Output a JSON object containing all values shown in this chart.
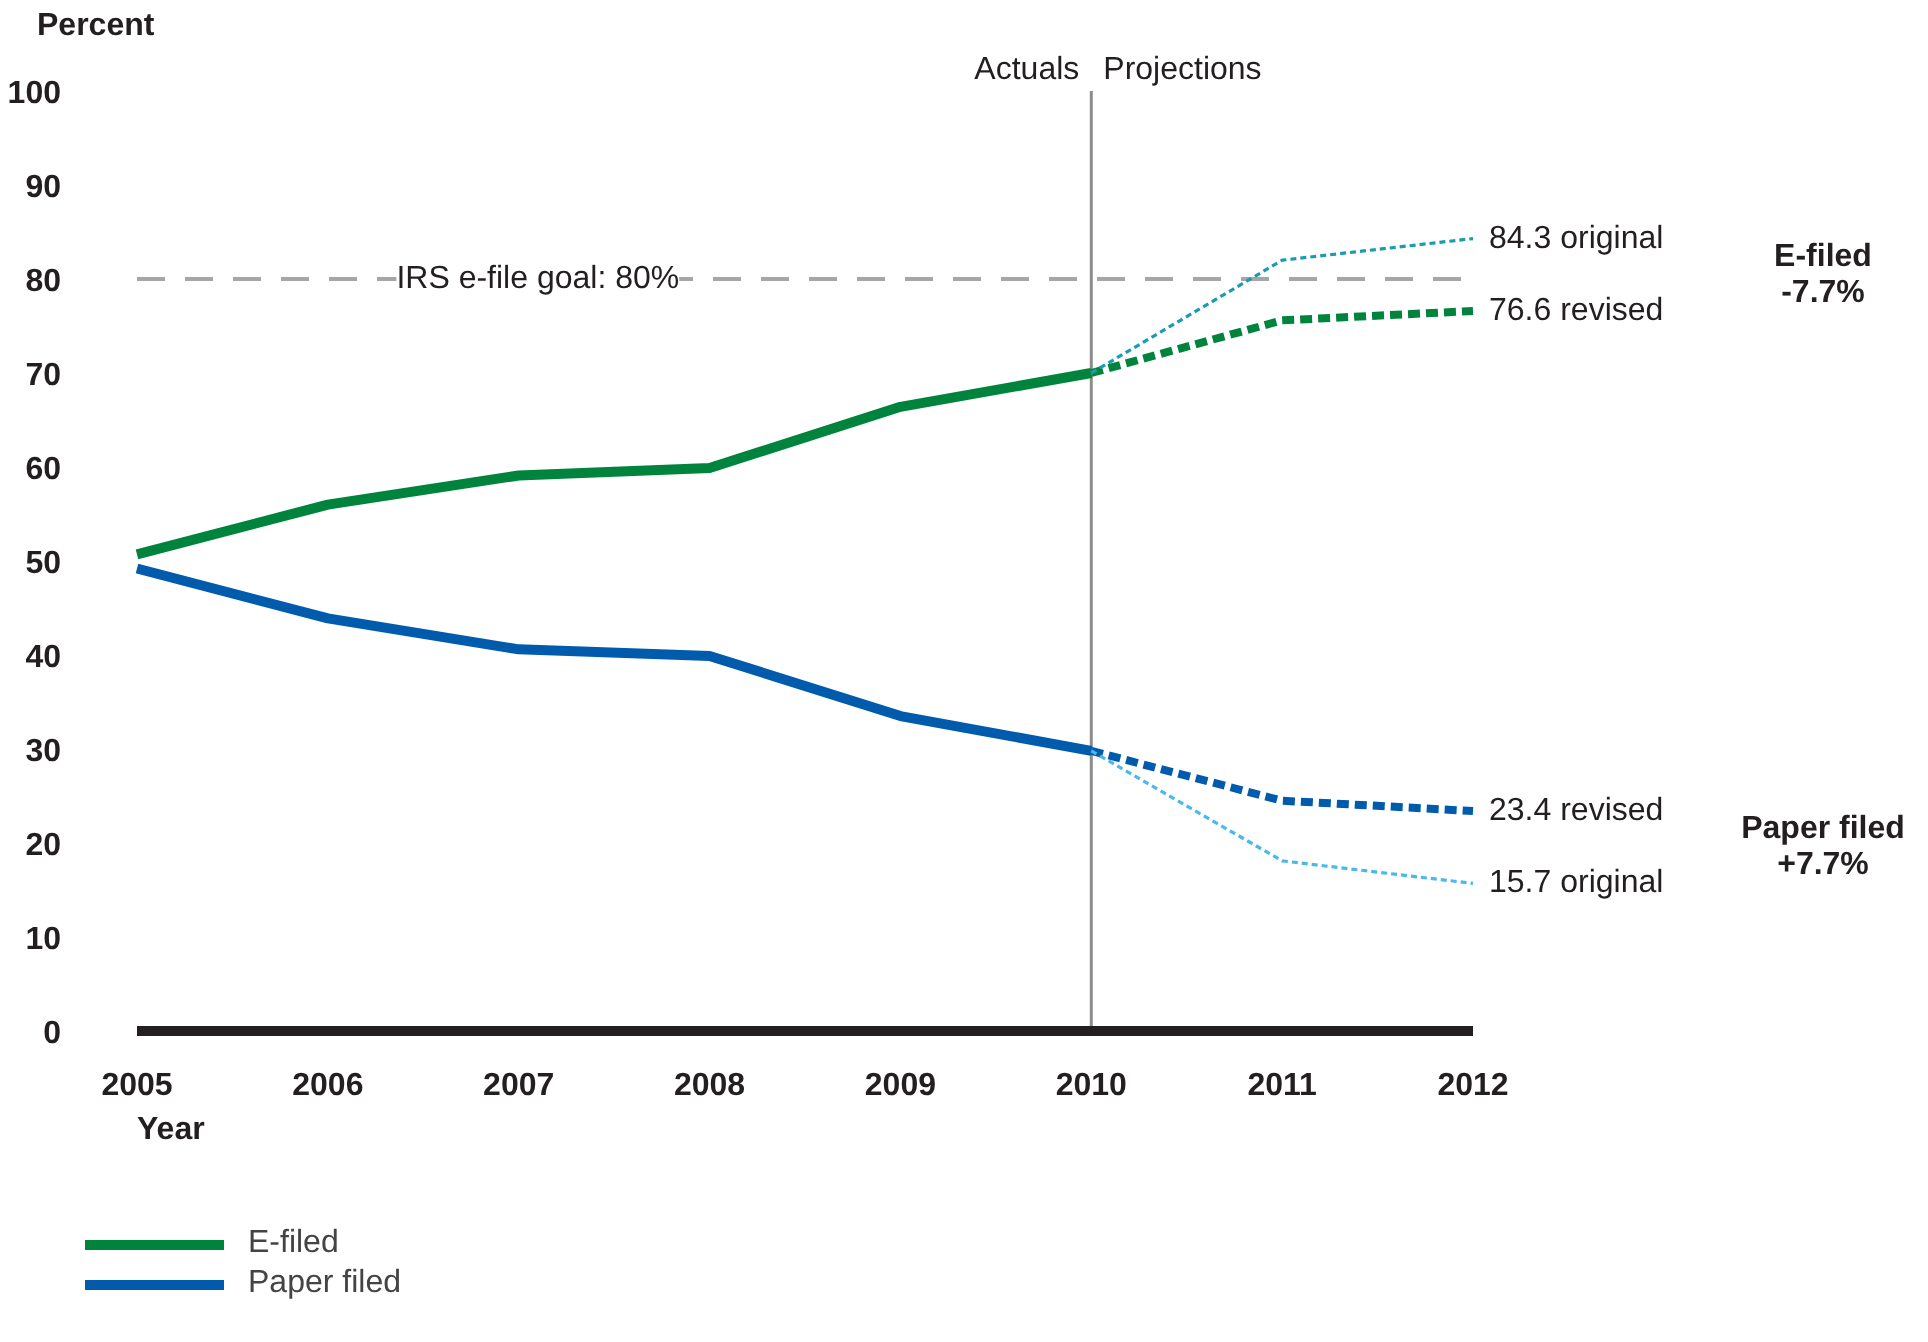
{
  "chart_data": {
    "type": "line",
    "xlabel": "Year",
    "ylabel": "Percent",
    "xlim": [
      2005,
      2012
    ],
    "xticks": [
      2005,
      2006,
      2007,
      2008,
      2009,
      2010,
      2011,
      2012
    ],
    "ylim": [
      0,
      100
    ],
    "yticks": [
      0,
      10,
      20,
      30,
      40,
      50,
      60,
      70,
      80,
      90,
      100
    ],
    "grid": false,
    "legend": "bottom left",
    "marker": "none",
    "series": [
      {
        "name": "E-filed",
        "color": "#00843d",
        "line_style": "solid",
        "x": [
          2005,
          2006,
          2007,
          2008,
          2009,
          2010
        ],
        "values": [
          50.7,
          56.0,
          59.1,
          59.9,
          66.4,
          70.0
        ]
      },
      {
        "name": "Paper filed",
        "color": "#005bac",
        "line_style": "solid",
        "x": [
          2005,
          2006,
          2007,
          2008,
          2009,
          2010
        ],
        "values": [
          49.2,
          43.9,
          40.6,
          39.9,
          33.5,
          29.8
        ]
      },
      {
        "color": "#1a9bb0",
        "line_style": "dashed",
        "x": [
          2010,
          2011,
          2012
        ],
        "values": [
          70.0,
          82.0,
          84.3
        ],
        "value_labels": [
          null,
          null,
          "84.3 original"
        ]
      },
      {
        "color": "#00843d",
        "line_style": "dotted",
        "x": [
          2010,
          2011,
          2012
        ],
        "values": [
          70.0,
          75.6,
          76.6
        ],
        "value_labels": [
          null,
          null,
          "76.6 revised"
        ]
      },
      {
        "color": "#005bac",
        "line_style": "dotted",
        "x": [
          2010,
          2011,
          2012
        ],
        "values": [
          29.8,
          24.5,
          23.4
        ],
        "value_labels": [
          null,
          null,
          "23.4 revised"
        ]
      },
      {
        "color": "#4ab8e8",
        "line_style": "dashed",
        "x": [
          2010,
          2011,
          2012
        ],
        "values": [
          29.8,
          18.1,
          15.7
        ],
        "value_labels": [
          null,
          null,
          "15.7 original"
        ]
      }
    ],
    "ref_lines": [
      {
        "axis": "y",
        "value": 80,
        "label": "IRS e-file goal: 80%",
        "color": "#a6a6a6",
        "line_style": "dashed"
      },
      {
        "axis": "x",
        "value": 2010,
        "label": null,
        "color": "#8c8c8c",
        "line_style": "solid"
      }
    ],
    "annotations": [
      {
        "text": "Actuals",
        "x": 2010,
        "y": 100
      },
      {
        "text": "Projections",
        "x": 2010,
        "y": 100
      },
      "E-filed",
      "-7.7%",
      "Paper filed",
      "+7.7%"
    ]
  }
}
